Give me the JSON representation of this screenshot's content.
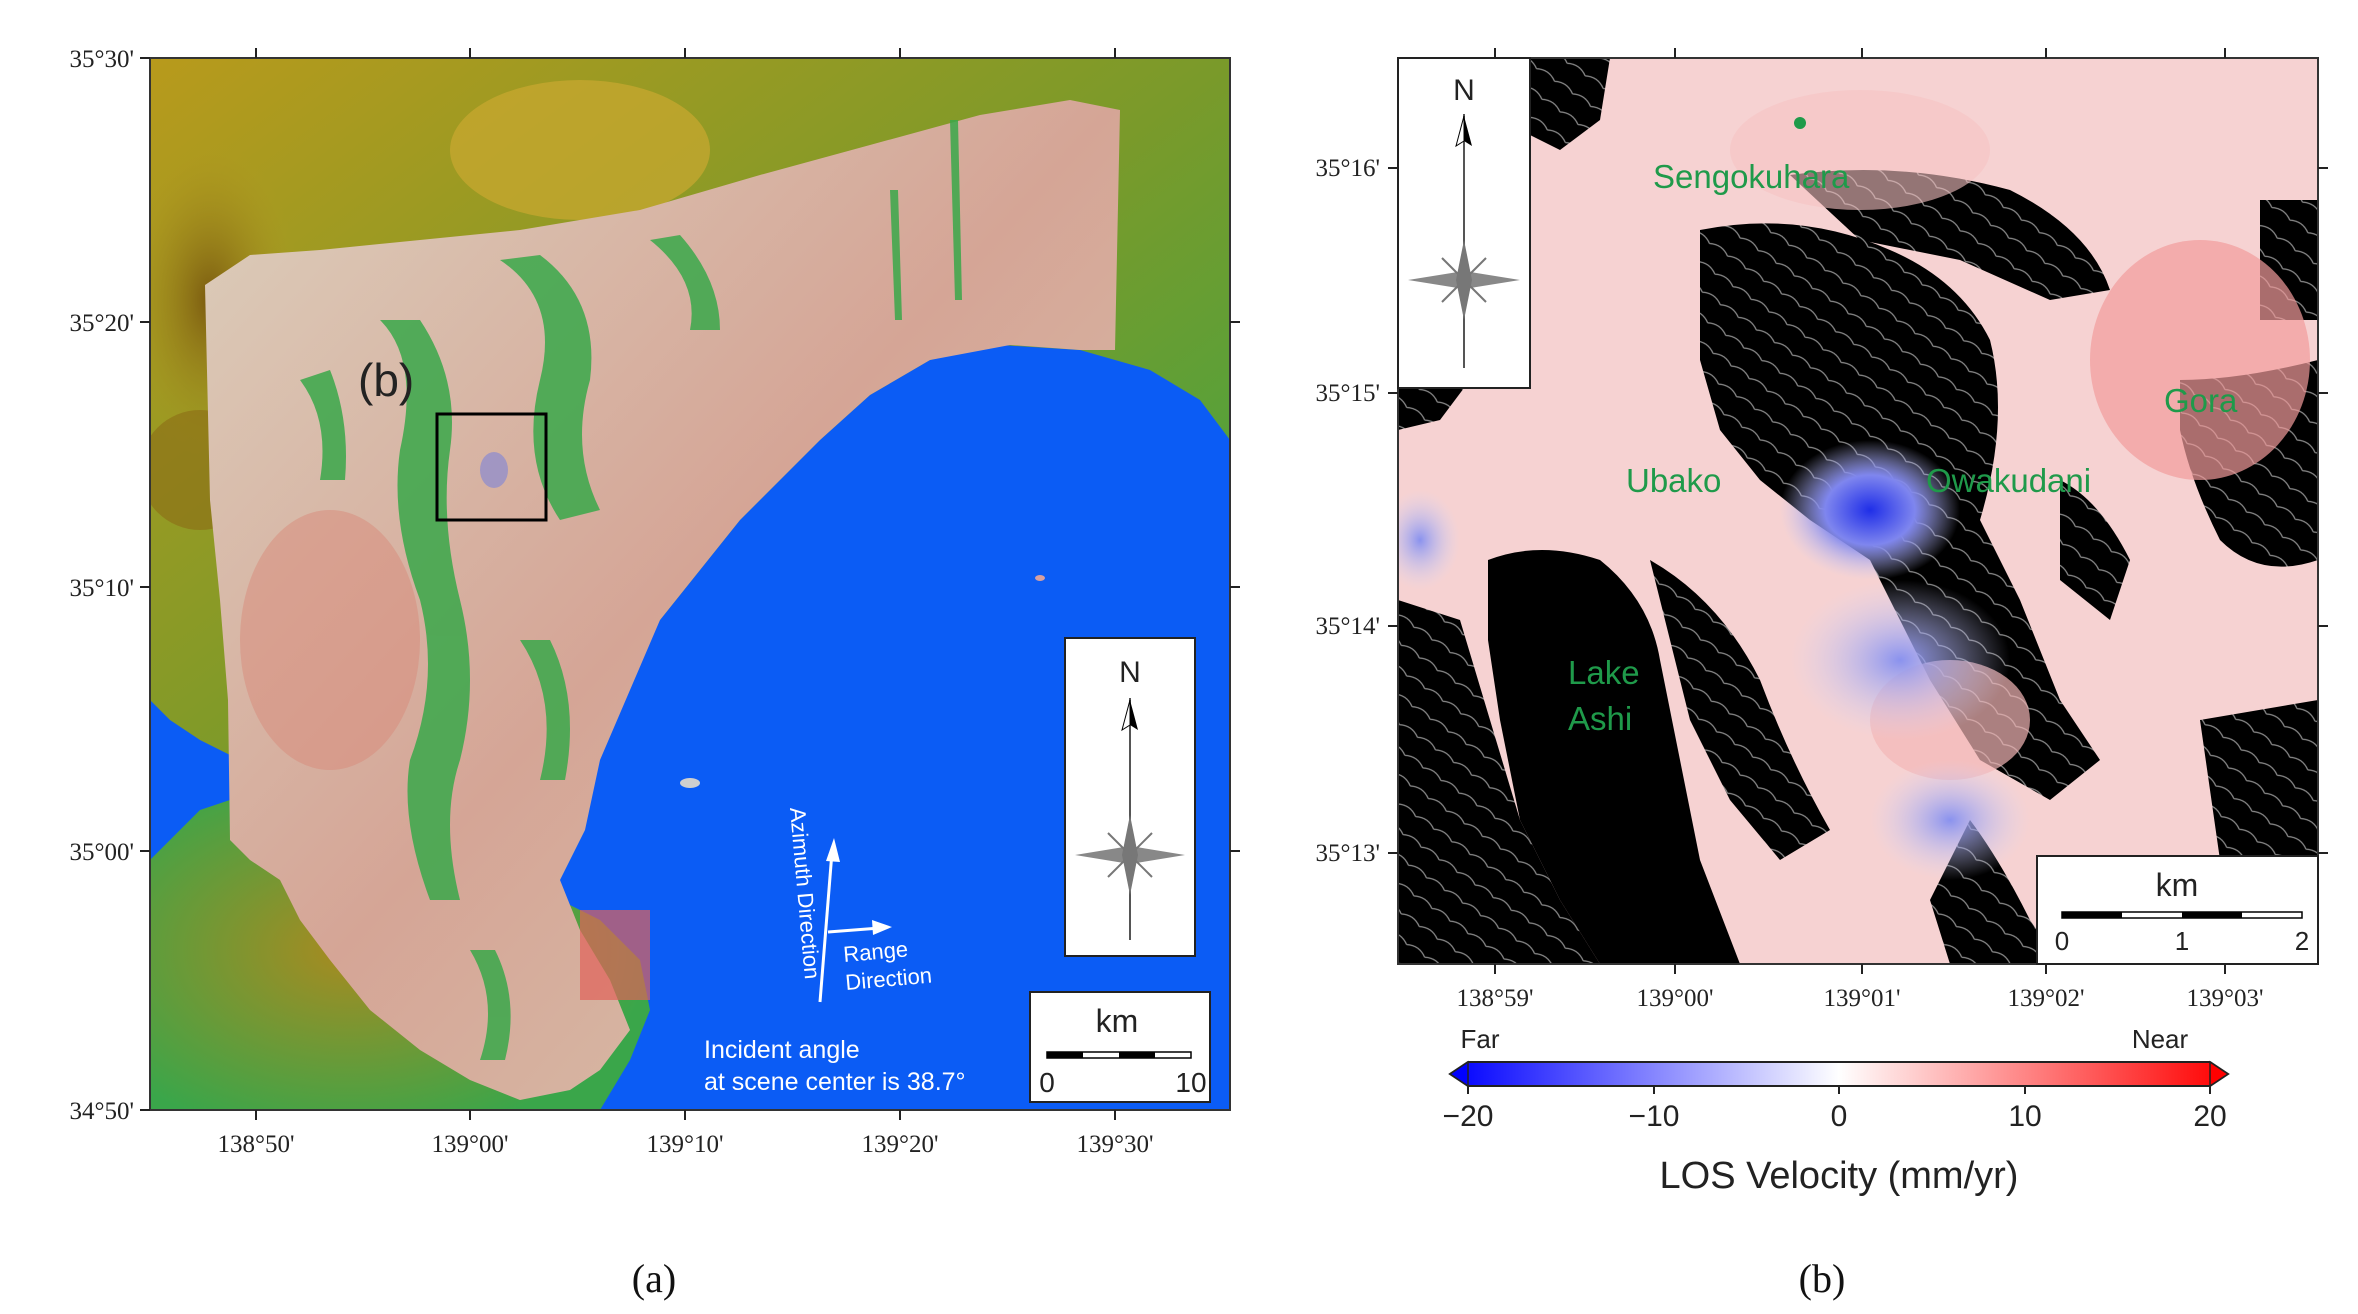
{
  "panel_a": {
    "lat_ticks": [
      "35°30'",
      "35°20'",
      "35°10'",
      "35°00'",
      "34°50'"
    ],
    "lon_ticks": [
      "138°50'",
      "139°00'",
      "139°10'",
      "139°20'",
      "139°30'"
    ],
    "inset_label": "(b)",
    "north_label": "N",
    "scale_unit": "km",
    "scale_min": "0",
    "scale_max": "10",
    "azimuth_label": "Azimuth Direction",
    "range_label_1": "Range",
    "range_label_2": "Direction",
    "incident_line_1": "Incident angle",
    "incident_line_2": "at scene center is 38.7°",
    "colors": {
      "sea": "#0b5cf5",
      "land_low": "#33a84a",
      "land_high": "#b6a020",
      "scene": "#d9b4a4"
    }
  },
  "panel_b": {
    "lat_ticks": [
      "35°16'",
      "35°15'",
      "35°14'",
      "35°13'"
    ],
    "lon_ticks": [
      "138°59'",
      "139°00'",
      "139°01'",
      "139°02'",
      "139°03'"
    ],
    "north_label": "N",
    "places": {
      "sengokuhara": "Sengokuhara",
      "gora": "Gora",
      "ubako": "Ubako",
      "owakudani": "Owakudani",
      "lake_1": "Lake",
      "lake_2": "Ashi"
    },
    "scale_unit": "km",
    "scale_ticks": [
      "0",
      "1",
      "2"
    ],
    "colorbar": {
      "far": "Far",
      "near": "Near",
      "ticks": [
        "−20",
        "−10",
        "0",
        "10",
        "20"
      ],
      "title": "LOS Velocity (mm/yr)",
      "min_color": "#0000ff",
      "mid_color": "#ffffff",
      "max_color": "#ff0000"
    }
  },
  "captions": {
    "a": "(a)",
    "b": "(b)"
  }
}
